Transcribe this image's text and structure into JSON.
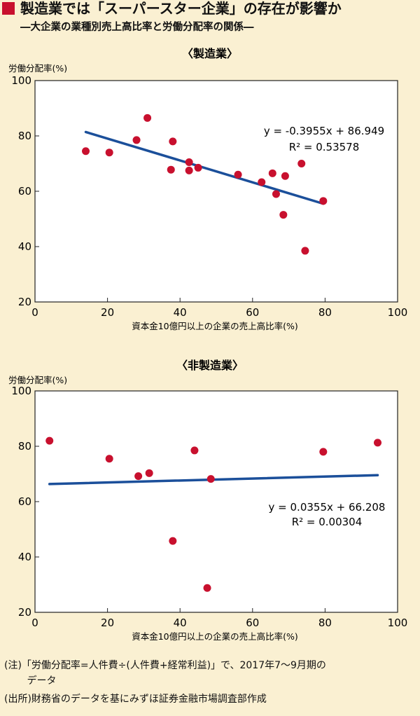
{
  "title": "製造業では「スーパースター企業」の存在が影響か",
  "subtitle": "―大企業の業種別売上高比率と労働分配率の関係―",
  "colors": {
    "marker": "#c8102e",
    "point": "#c8102e",
    "trend": "#1b4f9a",
    "plot_bg": "#ffffff",
    "page_bg": "#faf0d2"
  },
  "chart_data": [
    {
      "type": "scatter",
      "title": "〈製造業〉",
      "xlabel": "資本金10億円以上の企業の売上高比率(%)",
      "ylabel": "労働分配率(%)",
      "xlim": [
        0,
        100
      ],
      "ylim": [
        20,
        100
      ],
      "xticks": [
        "0",
        "20",
        "40",
        "60",
        "80",
        "100"
      ],
      "yticks": [
        "20",
        "40",
        "60",
        "80",
        "100"
      ],
      "grid": false,
      "points": [
        {
          "x": 14,
          "y": 74.5
        },
        {
          "x": 20.5,
          "y": 74
        },
        {
          "x": 28,
          "y": 78.5
        },
        {
          "x": 31,
          "y": 86.5
        },
        {
          "x": 38,
          "y": 78
        },
        {
          "x": 37.5,
          "y": 67.8
        },
        {
          "x": 42.5,
          "y": 70.5
        },
        {
          "x": 42.5,
          "y": 67.5
        },
        {
          "x": 45,
          "y": 68.5
        },
        {
          "x": 56,
          "y": 66
        },
        {
          "x": 62.5,
          "y": 63.3
        },
        {
          "x": 65.5,
          "y": 66.5
        },
        {
          "x": 66.5,
          "y": 59
        },
        {
          "x": 68.5,
          "y": 51.5
        },
        {
          "x": 69,
          "y": 65.5
        },
        {
          "x": 73.5,
          "y": 70
        },
        {
          "x": 74.5,
          "y": 38.5
        },
        {
          "x": 79.5,
          "y": 56.5
        }
      ],
      "trendline": {
        "slope": -0.3955,
        "intercept": 86.949,
        "x_range": [
          14,
          79.5
        ]
      },
      "equation": "y = -0.3955x + 86.949",
      "r2": "R² = 0.53578"
    },
    {
      "type": "scatter",
      "title": "〈非製造業〉",
      "xlabel": "資本金10億円以上の企業の売上高比率(%)",
      "ylabel": "労働分配率(%)",
      "xlim": [
        0,
        100
      ],
      "ylim": [
        20,
        100
      ],
      "xticks": [
        "0",
        "20",
        "40",
        "60",
        "80",
        "100"
      ],
      "yticks": [
        "20",
        "40",
        "60",
        "80",
        "100"
      ],
      "grid": false,
      "points": [
        {
          "x": 4,
          "y": 82
        },
        {
          "x": 20.5,
          "y": 75.5
        },
        {
          "x": 28.5,
          "y": 69.2
        },
        {
          "x": 31.5,
          "y": 70.3
        },
        {
          "x": 38,
          "y": 45.8
        },
        {
          "x": 44,
          "y": 78.5
        },
        {
          "x": 47.5,
          "y": 28.8
        },
        {
          "x": 48.5,
          "y": 68.2
        },
        {
          "x": 79.5,
          "y": 78
        },
        {
          "x": 94.5,
          "y": 81.3
        }
      ],
      "trendline": {
        "slope": 0.0355,
        "intercept": 66.208,
        "x_range": [
          4,
          94.5
        ]
      },
      "equation": "y = 0.0355x + 66.208",
      "r2": "R² = 0.00304"
    }
  ],
  "notes": [
    "(注)「労働分配率=人件費÷(人件費+経常利益)」で、2017年7～9月期の",
    "　　 データ",
    "(出所)財務省のデータを基にみずほ証券金融市場調査部作成"
  ]
}
